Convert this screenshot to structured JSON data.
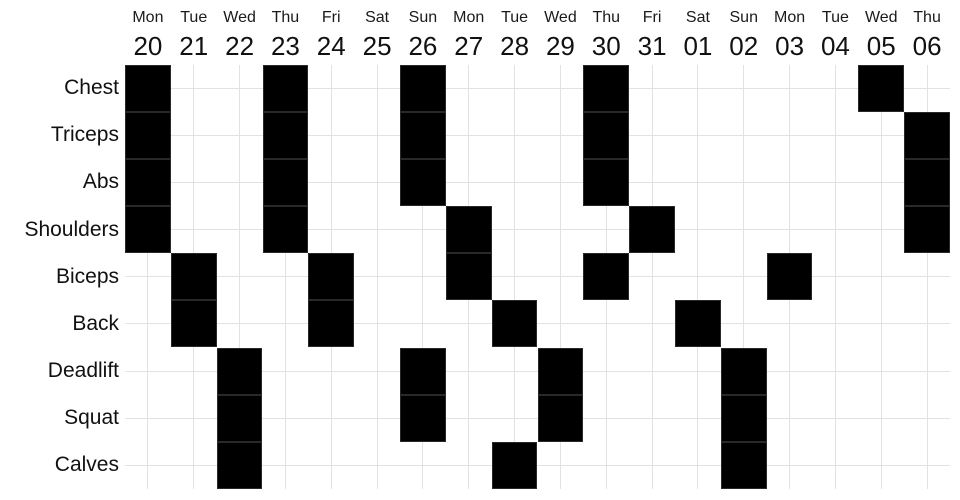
{
  "chart_data": {
    "type": "heatmap",
    "title": "",
    "xlabel": "",
    "ylabel": "",
    "legend": false,
    "grid": true,
    "x_axis": {
      "day_names": [
        "Mon",
        "Tue",
        "Wed",
        "Thu",
        "Fri",
        "Sat",
        "Sun",
        "Mon",
        "Tue",
        "Wed",
        "Thu",
        "Fri",
        "Sat",
        "Sun",
        "Mon",
        "Tue",
        "Wed",
        "Thu"
      ],
      "dates": [
        "20",
        "21",
        "22",
        "23",
        "24",
        "25",
        "26",
        "27",
        "28",
        "29",
        "30",
        "31",
        "01",
        "02",
        "03",
        "04",
        "05",
        "06"
      ]
    },
    "y_axis": {
      "categories": [
        "Chest",
        "Triceps",
        "Abs",
        "Shoulders",
        "Biceps",
        "Back",
        "Deadlift",
        "Squat",
        "Calves"
      ]
    },
    "cells": [
      [
        1,
        0,
        0,
        1,
        0,
        0,
        1,
        0,
        0,
        0,
        1,
        0,
        0,
        0,
        0,
        0,
        1,
        0
      ],
      [
        1,
        0,
        0,
        1,
        0,
        0,
        1,
        0,
        0,
        0,
        1,
        0,
        0,
        0,
        0,
        0,
        0,
        1
      ],
      [
        1,
        0,
        0,
        1,
        0,
        0,
        1,
        0,
        0,
        0,
        1,
        0,
        0,
        0,
        0,
        0,
        0,
        1
      ],
      [
        1,
        0,
        0,
        1,
        0,
        0,
        0,
        1,
        0,
        0,
        0,
        1,
        0,
        0,
        0,
        0,
        0,
        1
      ],
      [
        0,
        1,
        0,
        0,
        1,
        0,
        0,
        1,
        0,
        0,
        1,
        0,
        0,
        0,
        1,
        0,
        0,
        0
      ],
      [
        0,
        1,
        0,
        0,
        1,
        0,
        0,
        0,
        1,
        0,
        0,
        0,
        1,
        0,
        0,
        0,
        0,
        0
      ],
      [
        0,
        0,
        1,
        0,
        0,
        0,
        1,
        0,
        0,
        1,
        0,
        0,
        0,
        1,
        0,
        0,
        0,
        0
      ],
      [
        0,
        0,
        1,
        0,
        0,
        0,
        1,
        0,
        0,
        1,
        0,
        0,
        0,
        1,
        0,
        0,
        0,
        0
      ],
      [
        0,
        0,
        1,
        0,
        0,
        0,
        0,
        0,
        1,
        0,
        0,
        0,
        0,
        1,
        0,
        0,
        0,
        0
      ]
    ],
    "filled_dates_by_exercise": {
      "Chest": [
        "20",
        "23",
        "26",
        "30",
        "05"
      ],
      "Triceps": [
        "20",
        "23",
        "26",
        "30",
        "06"
      ],
      "Abs": [
        "20",
        "23",
        "26",
        "30",
        "06"
      ],
      "Shoulders": [
        "20",
        "23",
        "27",
        "31",
        "06"
      ],
      "Biceps": [
        "21",
        "24",
        "27",
        "30",
        "03"
      ],
      "Back": [
        "21",
        "24",
        "28",
        "01"
      ],
      "Deadlift": [
        "22",
        "26",
        "29",
        "02"
      ],
      "Squat": [
        "22",
        "26",
        "29",
        "02"
      ],
      "Calves": [
        "22",
        "28",
        "02"
      ]
    },
    "colors": {
      "filled": "#000000",
      "gridline": "#e2e2e2",
      "background": "#ffffff",
      "text": "#111111"
    }
  }
}
